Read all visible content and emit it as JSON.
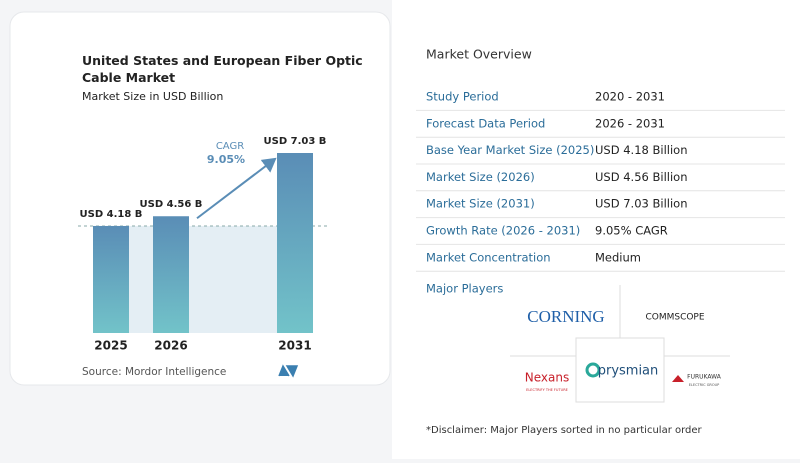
{
  "chart_data": {
    "type": "bar",
    "title": "United States and European Fiber Optic Cable Market",
    "subtitle": "Market Size in USD Billion",
    "categories": [
      "2025",
      "2026",
      "2031"
    ],
    "values": [
      4.18,
      4.56,
      7.03
    ],
    "value_labels": [
      "USD 4.18 B",
      "USD 4.56 B",
      "USD 7.03 B"
    ],
    "annotation": {
      "label": "CAGR",
      "value": "9.05%"
    },
    "source": "Source:  Mordor Intelligence"
  },
  "overview": {
    "title": "Market Overview",
    "rows": [
      [
        "Study Period",
        "2020 - 2031"
      ],
      [
        "Forecast Data Period",
        "2026 - 2031"
      ],
      [
        "Base Year Market Size (2025)",
        "USD 4.18 Billion"
      ],
      [
        "Market Size (2026)",
        "USD 4.56 Billion"
      ],
      [
        "Market Size (2031)",
        "USD 7.03 Billion"
      ],
      [
        "Growth Rate (2026 - 2031)",
        "9.05% CAGR"
      ],
      [
        "Market Concentration",
        "Medium"
      ]
    ]
  },
  "players": {
    "title": "Major Players",
    "logos": [
      "CORNING",
      "COMMSCOPE",
      "Nexans",
      "ELECTRIFY THE FUTURE",
      "prysmian",
      "FURUKAWA",
      "ELECTRIC GROUP"
    ]
  },
  "disclaimer": "*Disclaimer: Major Players sorted in no particular order"
}
